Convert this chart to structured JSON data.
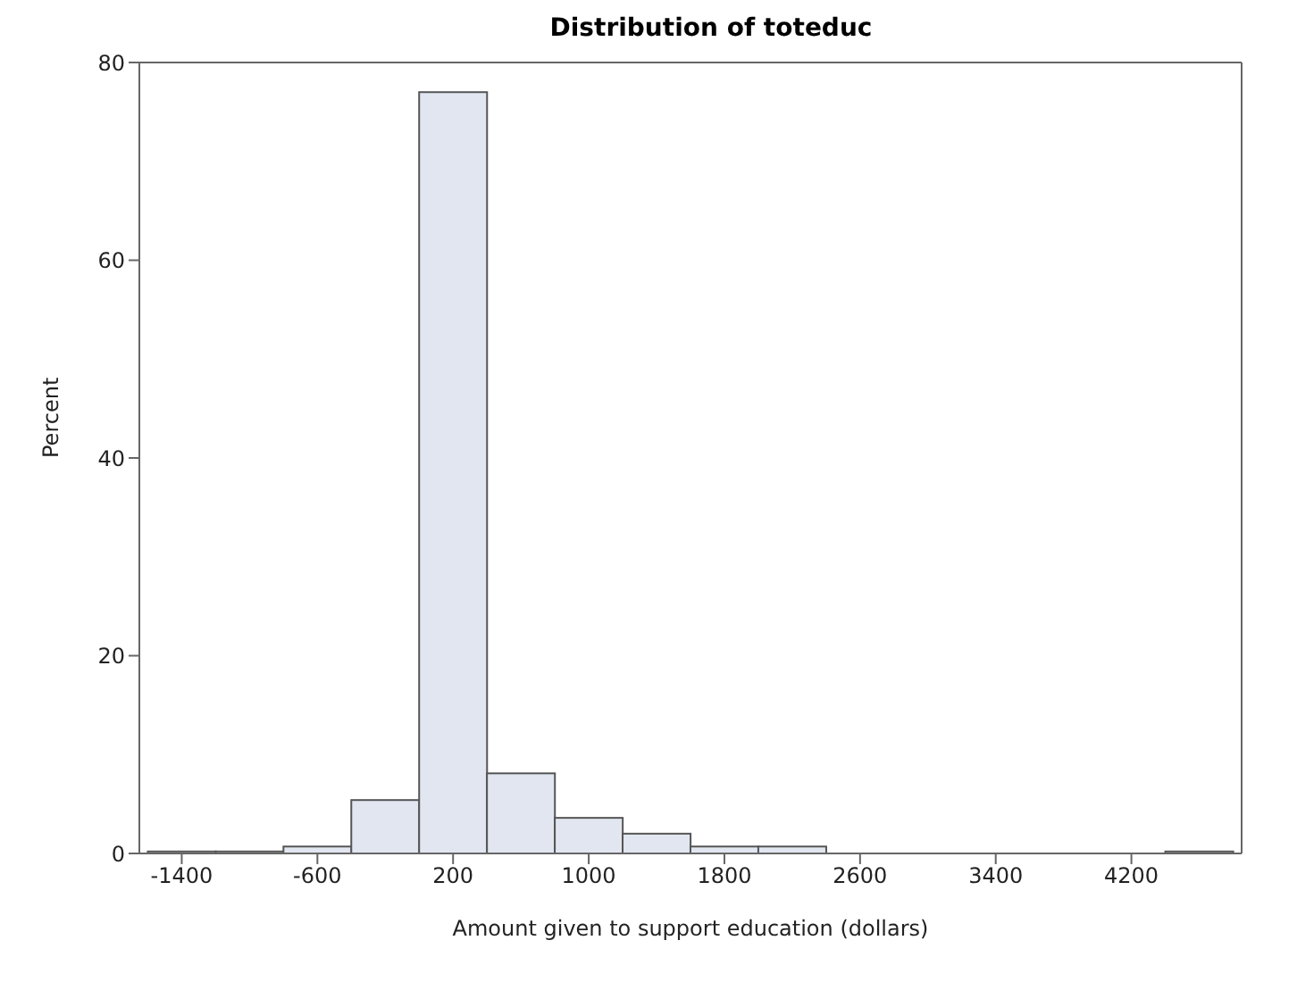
{
  "chart_data": {
    "type": "histogram",
    "title": "Distribution of toteduc",
    "xlabel": "Amount given to support education (dollars)",
    "ylabel": "Percent",
    "bins": [
      -1600,
      -1200,
      -800,
      -400,
      0,
      400,
      800,
      1200,
      1600,
      2000,
      2400,
      2800,
      3200,
      3600,
      4000,
      4400,
      4800
    ],
    "values": [
      0.2,
      0.2,
      0.7,
      5.4,
      77,
      8.1,
      3.6,
      2.0,
      0.7,
      0.7,
      0,
      0,
      0,
      0,
      0,
      0.2
    ],
    "color": "#e1e6f0",
    "xlim": [
      -1650,
      4850
    ],
    "xticks": [
      -1400,
      -600,
      200,
      1000,
      1800,
      2600,
      3400,
      4200
    ],
    "ylim": [
      0,
      80
    ],
    "yticks": [
      0,
      20,
      40,
      60,
      80
    ]
  }
}
